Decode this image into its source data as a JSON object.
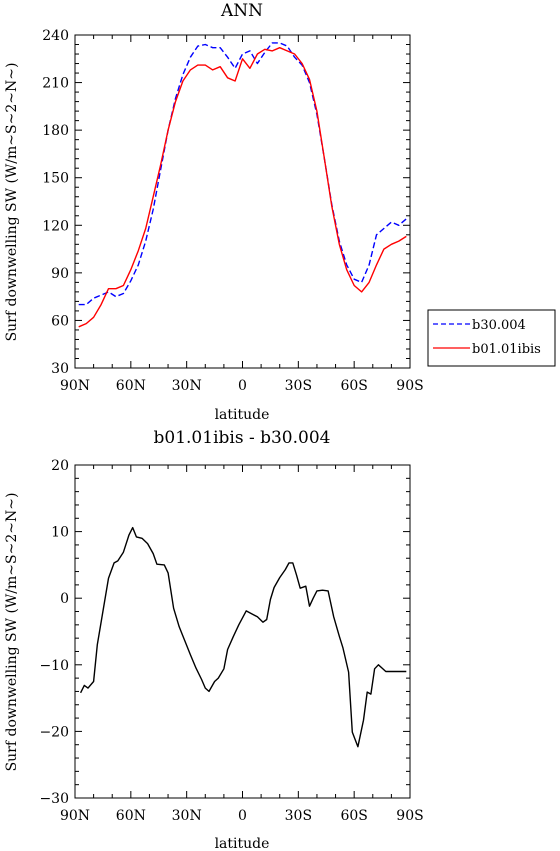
{
  "chart_data": [
    {
      "type": "line",
      "title": "ANN",
      "xlabel": "latitude",
      "ylabel": "Surf downwelling SW (W/m~S~2~N~)",
      "xlim": [
        90,
        -90
      ],
      "ylim": [
        30,
        240
      ],
      "xticks": [
        {
          "value": 90,
          "label": "90N"
        },
        {
          "value": 60,
          "label": "60N"
        },
        {
          "value": 30,
          "label": "30N"
        },
        {
          "value": 0,
          "label": "0"
        },
        {
          "value": -30,
          "label": "30S"
        },
        {
          "value": -60,
          "label": "60S"
        },
        {
          "value": -90,
          "label": "90S"
        }
      ],
      "yticks": [
        {
          "value": 30,
          "label": "30"
        },
        {
          "value": 60,
          "label": "60"
        },
        {
          "value": 90,
          "label": "90"
        },
        {
          "value": 120,
          "label": "120"
        },
        {
          "value": 150,
          "label": "150"
        },
        {
          "value": 180,
          "label": "180"
        },
        {
          "value": 210,
          "label": "210"
        },
        {
          "value": 240,
          "label": "240"
        }
      ],
      "legend_position": "right",
      "series": [
        {
          "name": "b30.004",
          "color": "#0000ff",
          "dash": true,
          "x": [
            88,
            84,
            80,
            76,
            72,
            68,
            64,
            60,
            56,
            52,
            48,
            44,
            40,
            36,
            32,
            28,
            24,
            20,
            16,
            12,
            8,
            4,
            0,
            -4,
            -8,
            -12,
            -16,
            -20,
            -24,
            -28,
            -32,
            -36,
            -40,
            -44,
            -48,
            -52,
            -56,
            -60,
            -64,
            -68,
            -72,
            -76,
            -80,
            -84,
            -88
          ],
          "y": [
            70,
            70,
            74,
            76,
            78,
            75,
            77,
            85,
            95,
            110,
            130,
            155,
            180,
            200,
            215,
            226,
            233,
            234,
            232,
            232,
            226,
            219,
            228,
            230,
            222,
            229,
            235,
            235,
            233,
            226,
            221,
            210,
            190,
            162,
            133,
            110,
            95,
            86,
            84,
            95,
            114,
            118,
            122,
            120,
            124
          ]
        },
        {
          "name": "b01.01ibis",
          "color": "#ff0000",
          "dash": false,
          "x": [
            88,
            84,
            80,
            76,
            72,
            68,
            64,
            60,
            56,
            52,
            48,
            44,
            40,
            36,
            32,
            28,
            24,
            20,
            16,
            12,
            8,
            4,
            0,
            -4,
            -8,
            -12,
            -16,
            -20,
            -24,
            -28,
            -32,
            -36,
            -40,
            -44,
            -48,
            -52,
            -56,
            -60,
            -64,
            -68,
            -72,
            -76,
            -80,
            -84,
            -88
          ],
          "y": [
            56,
            58,
            62,
            70,
            80,
            80,
            82,
            92,
            104,
            118,
            138,
            158,
            180,
            198,
            211,
            218,
            221,
            221,
            218,
            220,
            213,
            211,
            225,
            219,
            228,
            231,
            230,
            232,
            230,
            228,
            222,
            212,
            192,
            162,
            132,
            108,
            92,
            82,
            78,
            84,
            95,
            105,
            108,
            110,
            113
          ]
        }
      ]
    },
    {
      "type": "line",
      "title": "b01.01ibis - b30.004",
      "xlabel": "latitude",
      "ylabel": "Surf downwelling SW (W/m~S~2~N~)",
      "xlim": [
        90,
        -90
      ],
      "ylim": [
        -30,
        20
      ],
      "xticks": [
        {
          "value": 90,
          "label": "90N"
        },
        {
          "value": 60,
          "label": "60N"
        },
        {
          "value": 30,
          "label": "30N"
        },
        {
          "value": 0,
          "label": "0"
        },
        {
          "value": -30,
          "label": "30S"
        },
        {
          "value": -60,
          "label": "60S"
        },
        {
          "value": -90,
          "label": "90S"
        }
      ],
      "yticks": [
        {
          "value": -30,
          "label": "−30"
        },
        {
          "value": -20,
          "label": "−20"
        },
        {
          "value": -10,
          "label": "−10"
        },
        {
          "value": 0,
          "label": "0"
        },
        {
          "value": 10,
          "label": "10"
        },
        {
          "value": 20,
          "label": "20"
        }
      ],
      "series": [
        {
          "color": "#000000",
          "dash": false,
          "x": [
            87,
            85,
            83,
            80,
            78,
            75,
            72,
            69,
            67,
            64,
            61,
            59,
            57,
            54,
            51,
            48,
            46,
            42,
            40,
            37,
            34,
            31,
            28,
            25,
            22,
            20,
            18,
            15,
            13,
            10,
            8,
            5,
            2,
            -2,
            -6,
            -8,
            -11,
            -13,
            -15,
            -17,
            -20,
            -23,
            -25,
            -27,
            -29,
            -31,
            -34,
            -36,
            -38,
            -40,
            -43,
            -46,
            -49,
            -52,
            -54,
            -57,
            -59,
            -62,
            -65,
            -67,
            -69,
            -71,
            -73,
            -75,
            -77,
            -80,
            -83,
            -86,
            -88
          ],
          "y": [
            -14.2,
            -13.1,
            -13.5,
            -12.5,
            -7,
            -2,
            3,
            5.3,
            5.6,
            6.9,
            9.5,
            10.6,
            9.2,
            9,
            8.2,
            6.7,
            5.1,
            5,
            3.8,
            -1.5,
            -4.3,
            -6.4,
            -8.5,
            -10.5,
            -12.2,
            -13.5,
            -14,
            -12.5,
            -12,
            -10.6,
            -7.7,
            -5.8,
            -4,
            -1.9,
            -2.5,
            -2.8,
            -3.6,
            -3.2,
            -0.2,
            1.6,
            3.1,
            4.3,
            5.3,
            5.3,
            3.5,
            1.5,
            1.8,
            -1.2,
            0,
            1.1,
            1.2,
            1.1,
            -2.8,
            -5.7,
            -7.5,
            -11.1,
            -20.1,
            -22.3,
            -18.3,
            -14.1,
            -14.4,
            -10.6,
            -10,
            -10.5,
            -11,
            -11,
            -11,
            -11,
            -11
          ]
        }
      ]
    }
  ],
  "legend": {
    "items": [
      {
        "label": "b30.004",
        "color": "#0000ff",
        "dash": true
      },
      {
        "label": "b01.01ibis",
        "color": "#ff0000",
        "dash": false
      }
    ]
  }
}
